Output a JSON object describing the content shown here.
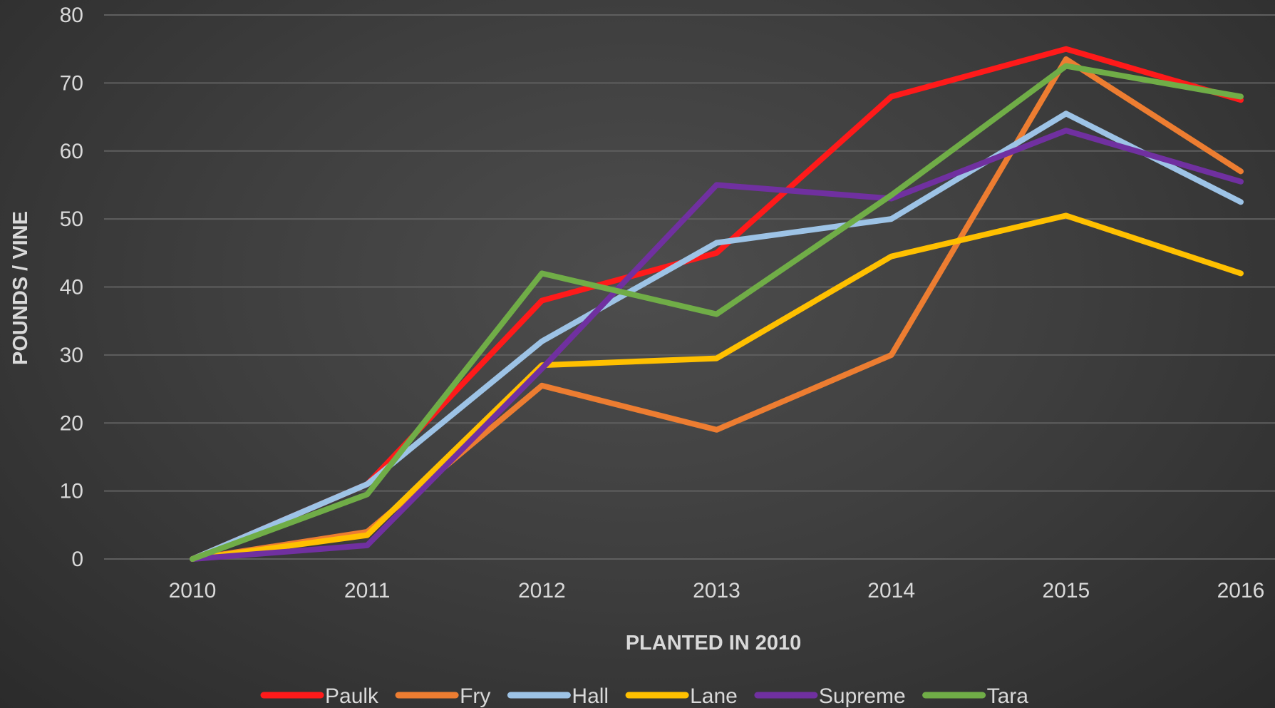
{
  "chart_data": {
    "type": "line",
    "title": "",
    "xlabel": "PLANTED IN 2010",
    "ylabel": "POUNDS / VINE",
    "categories": [
      "2010",
      "2011",
      "2012",
      "2013",
      "2014",
      "2015",
      "2016"
    ],
    "yticks": [
      "0",
      "10",
      "20",
      "30",
      "40",
      "50",
      "60",
      "70",
      "80"
    ],
    "ylim": [
      0,
      80
    ],
    "grid": true,
    "legend_position": "bottom",
    "series": [
      {
        "name": "Paulk",
        "color": "#ff1a1a",
        "values": [
          0,
          11,
          38,
          45,
          68,
          75,
          67.5
        ]
      },
      {
        "name": "Fry",
        "color": "#ed7d31",
        "values": [
          0,
          4,
          25.5,
          19,
          30,
          73.5,
          57
        ]
      },
      {
        "name": "Hall",
        "color": "#9dc3e6",
        "values": [
          0,
          11,
          32,
          46.5,
          50,
          65.5,
          52.5
        ]
      },
      {
        "name": "Lane",
        "color": "#ffc000",
        "values": [
          0,
          3.5,
          28.5,
          29.5,
          44.5,
          50.5,
          42
        ]
      },
      {
        "name": "Supreme",
        "color": "#7030a0",
        "values": [
          0,
          2,
          28,
          55,
          53,
          63,
          55.5
        ]
      },
      {
        "name": "Tara",
        "color": "#70ad47",
        "values": [
          0,
          9.5,
          42,
          36,
          53.5,
          72.5,
          68
        ]
      }
    ]
  }
}
